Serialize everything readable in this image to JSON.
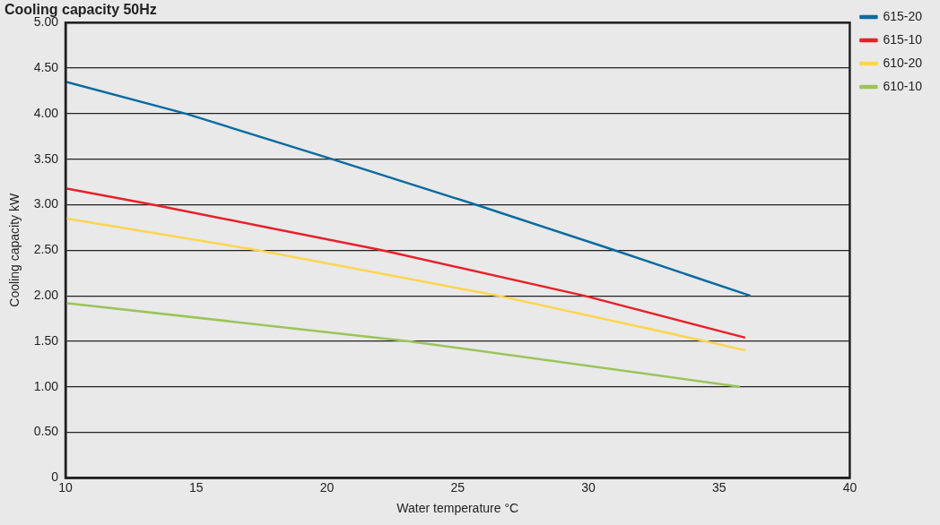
{
  "chart_data": {
    "type": "line",
    "title": "Cooling capacity 50Hz",
    "xlabel": "Water temperature °C",
    "ylabel": "Cooling capacity kW",
    "xlim": [
      10,
      40
    ],
    "xticks": [
      10,
      15,
      20,
      25,
      30,
      35,
      40
    ],
    "ylim": [
      0,
      5
    ],
    "yticks": [
      {
        "value": 0,
        "label": "0"
      },
      {
        "value": 0.5,
        "label": "0.50"
      },
      {
        "value": 1,
        "label": "1.00"
      },
      {
        "value": 1.5,
        "label": "1.50"
      },
      {
        "value": 2,
        "label": "2.00"
      },
      {
        "value": 2.5,
        "label": "2.50"
      },
      {
        "value": 3,
        "label": "3.00"
      },
      {
        "value": 3.5,
        "label": "3.50"
      },
      {
        "value": 4,
        "label": "4.00"
      },
      {
        "value": 4.5,
        "label": "4.50"
      },
      {
        "value": 5,
        "label": "5.00"
      }
    ],
    "grid": "y",
    "legend": "top right",
    "marker": "none",
    "line_style": "solid",
    "series": [
      {
        "name": "615-20",
        "color": "#0a6aa1",
        "x": [
          10,
          14.6,
          20.2,
          25.7,
          31,
          36.2
        ],
        "values": [
          4.35,
          4,
          3.5,
          3,
          2.5,
          2
        ]
      },
      {
        "name": "615-10",
        "color": "#e8202a",
        "x": [
          10,
          13.35,
          22.1,
          29.85,
          36
        ],
        "values": [
          3.18,
          3,
          2.5,
          2,
          1.54
        ]
      },
      {
        "name": "610-20",
        "color": "#ffd54f",
        "x": [
          10,
          17.35,
          26.55,
          34.5,
          36
        ],
        "values": [
          2.85,
          2.5,
          2,
          1.5,
          1.4
        ]
      },
      {
        "name": "610-10",
        "color": "#9bc45a",
        "x": [
          10,
          23.15,
          35.8
        ],
        "values": [
          1.92,
          1.5,
          1
        ]
      }
    ]
  }
}
